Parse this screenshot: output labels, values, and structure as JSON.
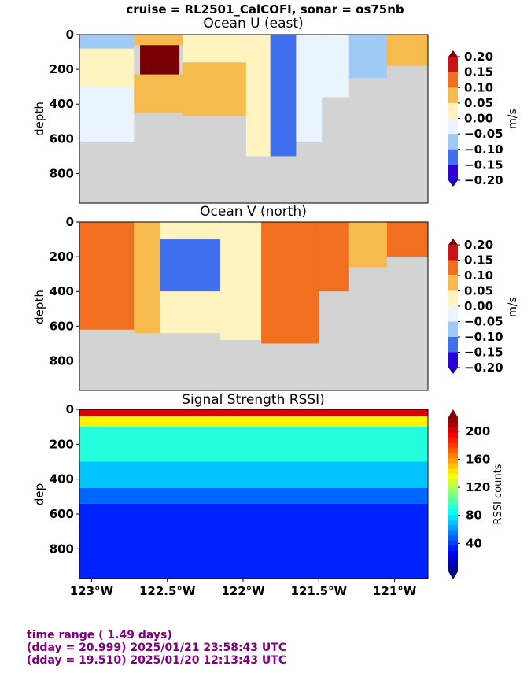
{
  "suptitle": "cruise = RL2501_CalCOFI,  sonar = os75nb",
  "footer": {
    "color": "#800080",
    "lines": [
      "time range ( 1.49 days)",
      "(dday = 20.999) 2025/01/21 23:58:43 UTC",
      "(dday = 19.510) 2025/01/20 12:13:43 UTC"
    ]
  },
  "chart_data": [
    {
      "type": "heatmap",
      "title": "Ocean U (east)",
      "ylabel": "depth",
      "colorbar_label": "m/s",
      "colorbar_ticks": [
        "0.20",
        "0.15",
        "0.10",
        "0.05",
        "0.00",
        "−0.05",
        "−0.10",
        "−0.15",
        "−0.20"
      ],
      "clim": [
        -0.2,
        0.2
      ],
      "yticks": [
        "0",
        "200",
        "400",
        "600",
        "800"
      ],
      "ylim": [
        0,
        970
      ],
      "xlim": [
        -123.08,
        -120.78
      ],
      "cells": [
        {
          "x": [
            -123.08,
            -122.72
          ],
          "y": [
            0,
            80
          ],
          "v": -0.08
        },
        {
          "x": [
            -123.08,
            -122.72
          ],
          "y": [
            80,
            300
          ],
          "v": 0.02
        },
        {
          "x": [
            -123.08,
            -122.72
          ],
          "y": [
            300,
            620
          ],
          "v": -0.04
        },
        {
          "x": [
            -122.72,
            -122.4
          ],
          "y": [
            0,
            60
          ],
          "v": 0.06
        },
        {
          "x": [
            -122.68,
            -122.42
          ],
          "y": [
            60,
            230
          ],
          "v": 0.2
        },
        {
          "x": [
            -122.72,
            -122.4
          ],
          "y": [
            230,
            450
          ],
          "v": 0.08
        },
        {
          "x": [
            -122.4,
            -121.98
          ],
          "y": [
            0,
            160
          ],
          "v": 0.04
        },
        {
          "x": [
            -122.4,
            -121.98
          ],
          "y": [
            160,
            470
          ],
          "v": 0.07
        },
        {
          "x": [
            -121.98,
            -121.82
          ],
          "y": [
            0,
            700
          ],
          "v": 0.03
        },
        {
          "x": [
            -121.82,
            -121.65
          ],
          "y": [
            0,
            700
          ],
          "v": -0.12
        },
        {
          "x": [
            -121.65,
            -121.48
          ],
          "y": [
            0,
            620
          ],
          "v": -0.04
        },
        {
          "x": [
            -121.48,
            -121.3
          ],
          "y": [
            0,
            360
          ],
          "v": -0.02
        },
        {
          "x": [
            -121.3,
            -121.05
          ],
          "y": [
            0,
            250
          ],
          "v": -0.09
        },
        {
          "x": [
            -121.05,
            -120.78
          ],
          "y": [
            0,
            180
          ],
          "v": 0.05
        }
      ]
    },
    {
      "type": "heatmap",
      "title": "Ocean V (north)",
      "ylabel": "depth",
      "colorbar_label": "m/s",
      "colorbar_ticks": [
        "0.20",
        "0.15",
        "0.10",
        "0.05",
        "0.00",
        "−0.05",
        "−0.10",
        "−0.15",
        "−0.20"
      ],
      "clim": [
        -0.2,
        0.2
      ],
      "yticks": [
        "0",
        "200",
        "400",
        "600",
        "800"
      ],
      "ylim": [
        0,
        970
      ],
      "xlim": [
        -123.08,
        -120.78
      ],
      "cells": [
        {
          "x": [
            -123.08,
            -122.72
          ],
          "y": [
            0,
            620
          ],
          "v": 0.12
        },
        {
          "x": [
            -122.72,
            -122.55
          ],
          "y": [
            0,
            640
          ],
          "v": 0.05
        },
        {
          "x": [
            -122.55,
            -122.15
          ],
          "y": [
            0,
            100
          ],
          "v": 0.04
        },
        {
          "x": [
            -122.55,
            -122.15
          ],
          "y": [
            100,
            400
          ],
          "v": -0.11
        },
        {
          "x": [
            -122.55,
            -122.15
          ],
          "y": [
            400,
            640
          ],
          "v": 0.02
        },
        {
          "x": [
            -122.15,
            -121.88
          ],
          "y": [
            0,
            680
          ],
          "v": 0.02
        },
        {
          "x": [
            -121.88,
            -121.5
          ],
          "y": [
            0,
            700
          ],
          "v": 0.1
        },
        {
          "x": [
            -121.5,
            -121.3
          ],
          "y": [
            0,
            400
          ],
          "v": 0.12
        },
        {
          "x": [
            -121.3,
            -121.05
          ],
          "y": [
            0,
            260
          ],
          "v": 0.08
        },
        {
          "x": [
            -121.05,
            -120.78
          ],
          "y": [
            0,
            200
          ],
          "v": 0.15
        }
      ]
    },
    {
      "type": "heatmap",
      "title": "Signal Strength RSSI)",
      "ylabel": "dep",
      "colorbar_label": "RSSI counts",
      "colorbar_ticks": [
        "200",
        "160",
        "120",
        "80",
        "40"
      ],
      "clim": [
        0,
        220
      ],
      "yticks": [
        "0",
        "200",
        "400",
        "600",
        "800"
      ],
      "ylim": [
        0,
        970
      ],
      "xlim": [
        -123.08,
        -120.78
      ],
      "xticks": [
        "123°W",
        "122.5°W",
        "122°W",
        "121.5°W",
        "121°W"
      ],
      "layers": [
        {
          "depth": [
            0,
            40
          ],
          "rssi": 200
        },
        {
          "depth": [
            40,
            100
          ],
          "rssi": 140
        },
        {
          "depth": [
            100,
            300
          ],
          "rssi": 90
        },
        {
          "depth": [
            300,
            450
          ],
          "rssi": 70
        },
        {
          "depth": [
            450,
            540
          ],
          "rssi": 50
        },
        {
          "depth": [
            540,
            970
          ],
          "rssi": 35
        }
      ]
    }
  ]
}
